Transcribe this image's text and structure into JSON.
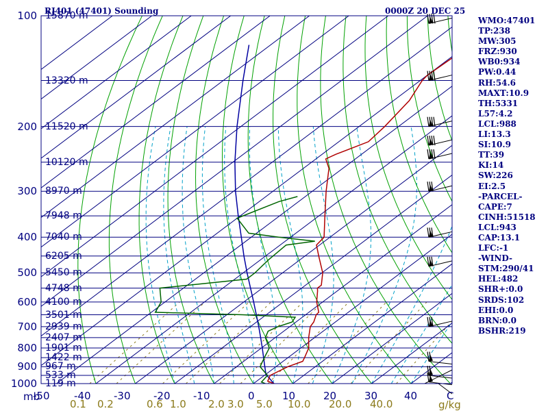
{
  "header": {
    "title_left": "RJ401 (47401) Sounding",
    "title_right": "0000Z 20 DEC 25"
  },
  "indices": [
    "WMO:47401",
    "TP:238",
    "MW:305",
    "FRZ:930",
    "WB0:934",
    "PW:0.44",
    "RH:54.6",
    "MAXT:10.9",
    "TH:5331",
    "L57:4.2",
    "LCL:988",
    "LI:13.3",
    "SI:10.9",
    "TT:39",
    "KI:14",
    "SW:226",
    "EI:2.5",
    "-PARCEL-",
    "CAPE:7",
    "CINH:51518",
    "LCL:943",
    "CAP:13.1",
    "LFC:-1",
    "-WIND-",
    "STM:290/41",
    "HEL:482",
    "SHR+:0.0",
    "SRDS:102",
    "EHI:0.0",
    "BRN:0.0",
    "BSHR:219"
  ],
  "colors": {
    "frame": "#000080",
    "isobar": "#000080",
    "isotherm": "#000080",
    "dry_adiabat": "#00a000",
    "moist_adiabat": "#00a0c8",
    "mixing_ratio": "#8b7a1a",
    "temperature": "#b00000",
    "dewpoint": "#006400",
    "parcel": "#0000a0",
    "wind_barb": "#000000"
  },
  "chart_data": {
    "type": "skew-t log-p",
    "pressure_unit_label": "mb",
    "mixing_ratio_unit_label": "g/kg",
    "pressure_ticks": [
      "100",
      "200",
      "300",
      "400",
      "500",
      "600",
      "700",
      "800",
      "900",
      "1000"
    ],
    "temperature_ticks": [
      "-50",
      "-40",
      "-30",
      "-20",
      "-10",
      "0",
      "10",
      "20",
      "30",
      "40",
      "C"
    ],
    "mixing_ratio_ticks": [
      "0.1",
      "0.2",
      "0.6",
      "1.0",
      "2.0",
      "3.0",
      "5.0",
      "10.0",
      "20.0",
      "40.0"
    ],
    "xlim_temperature_c_at_1000mb": [
      -50,
      50
    ],
    "ylim_pressure_mb": [
      1000,
      100
    ],
    "heights": [
      {
        "label": "15870 m",
        "p": 100
      },
      {
        "label": "13320 m",
        "p": 150
      },
      {
        "label": "11520 m",
        "p": 200
      },
      {
        "label": "10120 m",
        "p": 250
      },
      {
        "label": "8970 m",
        "p": 300
      },
      {
        "label": "7948 m",
        "p": 350
      },
      {
        "label": "7040 m",
        "p": 400
      },
      {
        "label": "6205 m",
        "p": 450
      },
      {
        "label": "5450 m",
        "p": 500
      },
      {
        "label": "4748 m",
        "p": 550
      },
      {
        "label": "4100 m",
        "p": 600
      },
      {
        "label": "3501 m",
        "p": 650
      },
      {
        "label": "2939 m",
        "p": 700
      },
      {
        "label": "2407 m",
        "p": 750
      },
      {
        "label": "1901 m",
        "p": 800
      },
      {
        "label": "1422 m",
        "p": 850
      },
      {
        "label": "967 m",
        "p": 900
      },
      {
        "label": "533 m",
        "p": 950
      },
      {
        "label": "119 m",
        "p": 1000
      }
    ],
    "temperature_profile": [
      {
        "p": 1000,
        "t": 5.2
      },
      {
        "p": 985,
        "t": 2.8
      },
      {
        "p": 950,
        "t": 1.5
      },
      {
        "p": 900,
        "t": 3.0
      },
      {
        "p": 870,
        "t": 5.0
      },
      {
        "p": 850,
        "t": 4.2
      },
      {
        "p": 800,
        "t": 2.0
      },
      {
        "p": 750,
        "t": -1.5
      },
      {
        "p": 700,
        "t": -4.8
      },
      {
        "p": 680,
        "t": -5.5
      },
      {
        "p": 650,
        "t": -7.3
      },
      {
        "p": 640,
        "t": -7.5
      },
      {
        "p": 600,
        "t": -11.5
      },
      {
        "p": 560,
        "t": -15.0
      },
      {
        "p": 550,
        "t": -16.0
      },
      {
        "p": 540,
        "t": -16.0
      },
      {
        "p": 500,
        "t": -19.8
      },
      {
        "p": 450,
        "t": -26.5
      },
      {
        "p": 420,
        "t": -30.8
      },
      {
        "p": 400,
        "t": -31.5
      },
      {
        "p": 350,
        "t": -38.5
      },
      {
        "p": 300,
        "t": -46.5
      },
      {
        "p": 260,
        "t": -53.5
      },
      {
        "p": 245,
        "t": -57.5
      },
      {
        "p": 238,
        "t": -56.5
      },
      {
        "p": 220,
        "t": -52.5
      },
      {
        "p": 200,
        "t": -53.5
      },
      {
        "p": 170,
        "t": -56.0
      },
      {
        "p": 150,
        "t": -59.5
      },
      {
        "p": 145,
        "t": -60.0
      },
      {
        "p": 130,
        "t": -59.5
      },
      {
        "p": 115,
        "t": -62.0
      },
      {
        "p": 108,
        "t": -61.5
      },
      {
        "p": 100,
        "t": -61.3
      }
    ],
    "dewpoint_profile": [
      {
        "p": 1000,
        "t": 3.0
      },
      {
        "p": 990,
        "t": 1.5
      },
      {
        "p": 950,
        "t": 0.8
      },
      {
        "p": 900,
        "t": -4.0
      },
      {
        "p": 850,
        "t": -6.0
      },
      {
        "p": 800,
        "t": -8.0
      },
      {
        "p": 750,
        "t": -12.5
      },
      {
        "p": 720,
        "t": -14.0
      },
      {
        "p": 700,
        "t": -13.0
      },
      {
        "p": 680,
        "t": -11.0
      },
      {
        "p": 660,
        "t": -11.8
      },
      {
        "p": 650,
        "t": -26.0
      },
      {
        "p": 640,
        "t": -49.0
      },
      {
        "p": 600,
        "t": -51.0
      },
      {
        "p": 550,
        "t": -56.0
      },
      {
        "p": 520,
        "t": -37.0
      },
      {
        "p": 500,
        "t": -37.0
      },
      {
        "p": 460,
        "t": -38.0
      },
      {
        "p": 420,
        "t": -38.5
      },
      {
        "p": 410,
        "t": -32.5
      },
      {
        "p": 400,
        "t": -43.0
      },
      {
        "p": 390,
        "t": -52.0
      },
      {
        "p": 355,
        "t": -60.0
      },
      {
        "p": 320,
        "t": -55.0
      },
      {
        "p": 310,
        "t": -52.0
      }
    ],
    "parcel_profile": [
      {
        "p": 1000,
        "t": 5.2
      },
      {
        "p": 943,
        "t": 0.0
      },
      {
        "p": 900,
        "t": -2.8
      },
      {
        "p": 850,
        "t": -6.2
      },
      {
        "p": 800,
        "t": -9.8
      },
      {
        "p": 750,
        "t": -13.7
      },
      {
        "p": 700,
        "t": -17.9
      },
      {
        "p": 650,
        "t": -22.5
      },
      {
        "p": 600,
        "t": -27.5
      },
      {
        "p": 550,
        "t": -33.0
      },
      {
        "p": 500,
        "t": -39.0
      },
      {
        "p": 450,
        "t": -45.5
      },
      {
        "p": 400,
        "t": -52.5
      },
      {
        "p": 350,
        "t": -60.5
      },
      {
        "p": 300,
        "t": -69.5
      },
      {
        "p": 250,
        "t": -79.5
      },
      {
        "p": 200,
        "t": -91.0
      },
      {
        "p": 150,
        "t": -105.0
      },
      {
        "p": 120,
        "t": -115.5
      }
    ],
    "wind_barb_levels_mb": [
      105,
      150,
      200,
      225,
      245,
      300,
      400,
      480,
      700,
      870,
      950,
      990
    ]
  }
}
